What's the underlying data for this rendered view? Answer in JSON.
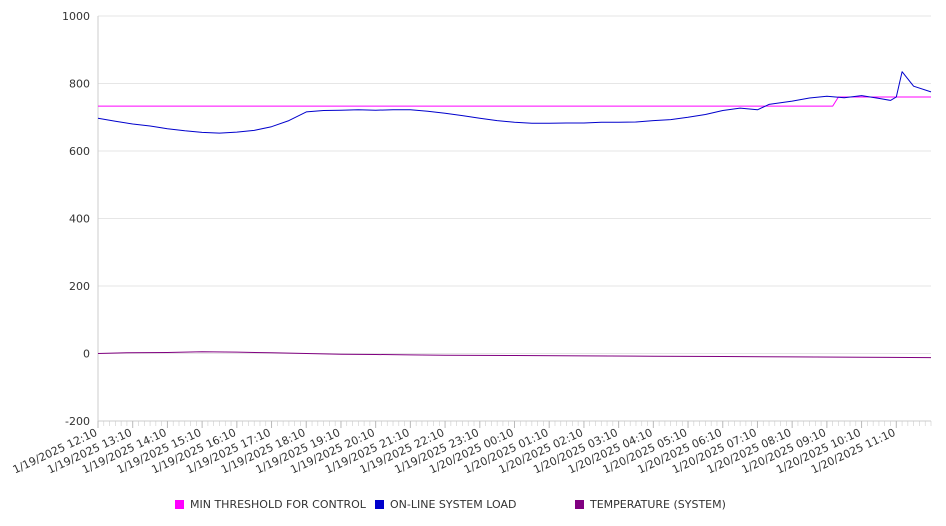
{
  "chart_data": {
    "type": "line",
    "ylim": [
      -200,
      1000
    ],
    "yticks": [
      -200,
      0,
      200,
      400,
      600,
      800,
      1000
    ],
    "x_start": "1/19/2025 12:10",
    "x_end": "1/20/2025 12:10",
    "x_tick_labels": [
      "1/19/2025 12:10",
      "1/19/2025 13:10",
      "1/19/2025 14:10",
      "1/19/2025 15:10",
      "1/19/2025 16:10",
      "1/19/2025 17:10",
      "1/19/2025 18:10",
      "1/19/2025 19:10",
      "1/19/2025 20:10",
      "1/19/2025 21:10",
      "1/19/2025 22:10",
      "1/19/2025 23:10",
      "1/20/2025 00:10",
      "1/20/2025 01:10",
      "1/20/2025 02:10",
      "1/20/2025 03:10",
      "1/20/2025 04:10",
      "1/20/2025 05:10",
      "1/20/2025 06:10",
      "1/20/2025 07:10",
      "1/20/2025 08:10",
      "1/20/2025 09:10",
      "1/20/2025 10:10",
      "1/20/2025 11:10"
    ],
    "grid": true,
    "legend_position": "bottom",
    "series": [
      {
        "name": "MIN THRESHOLD FOR CONTROL",
        "color": "#ff00ff",
        "points": [
          [
            "1/19/2025 12:10",
            733
          ],
          [
            "1/20/2025 09:20",
            733
          ],
          [
            "1/20/2025 09:30",
            760
          ],
          [
            "1/20/2025 12:10",
            760
          ]
        ]
      },
      {
        "name": "ON-LINE SYSTEM LOAD",
        "color": "#0000cc",
        "points": [
          [
            "1/19/2025 12:10",
            697
          ],
          [
            "1/19/2025 12:40",
            688
          ],
          [
            "1/19/2025 13:10",
            680
          ],
          [
            "1/19/2025 13:40",
            674
          ],
          [
            "1/19/2025 14:10",
            666
          ],
          [
            "1/19/2025 14:40",
            660
          ],
          [
            "1/19/2025 15:10",
            655
          ],
          [
            "1/19/2025 15:40",
            653
          ],
          [
            "1/19/2025 16:10",
            656
          ],
          [
            "1/19/2025 16:40",
            661
          ],
          [
            "1/19/2025 17:10",
            672
          ],
          [
            "1/19/2025 17:40",
            690
          ],
          [
            "1/19/2025 18:10",
            716
          ],
          [
            "1/19/2025 18:40",
            720
          ],
          [
            "1/19/2025 19:10",
            721
          ],
          [
            "1/19/2025 19:40",
            722
          ],
          [
            "1/19/2025 20:10",
            721
          ],
          [
            "1/19/2025 20:40",
            722
          ],
          [
            "1/19/2025 21:10",
            722
          ],
          [
            "1/19/2025 21:40",
            718
          ],
          [
            "1/19/2025 22:10",
            712
          ],
          [
            "1/19/2025 22:40",
            705
          ],
          [
            "1/19/2025 23:10",
            697
          ],
          [
            "1/19/2025 23:40",
            690
          ],
          [
            "1/20/2025 00:10",
            685
          ],
          [
            "1/20/2025 00:40",
            682
          ],
          [
            "1/20/2025 01:10",
            682
          ],
          [
            "1/20/2025 01:40",
            683
          ],
          [
            "1/20/2025 02:10",
            683
          ],
          [
            "1/20/2025 02:40",
            685
          ],
          [
            "1/20/2025 03:10",
            685
          ],
          [
            "1/20/2025 03:40",
            686
          ],
          [
            "1/20/2025 04:10",
            690
          ],
          [
            "1/20/2025 04:40",
            693
          ],
          [
            "1/20/2025 05:10",
            700
          ],
          [
            "1/20/2025 05:40",
            708
          ],
          [
            "1/20/2025 06:10",
            720
          ],
          [
            "1/20/2025 06:40",
            727
          ],
          [
            "1/20/2025 07:10",
            722
          ],
          [
            "1/20/2025 07:30",
            738
          ],
          [
            "1/20/2025 08:10",
            748
          ],
          [
            "1/20/2025 08:40",
            757
          ],
          [
            "1/20/2025 09:10",
            762
          ],
          [
            "1/20/2025 09:40",
            758
          ],
          [
            "1/20/2025 10:10",
            764
          ],
          [
            "1/20/2025 10:40",
            756
          ],
          [
            "1/20/2025 11:00",
            750
          ],
          [
            "1/20/2025 11:10",
            760
          ],
          [
            "1/20/2025 11:20",
            835
          ],
          [
            "1/20/2025 11:40",
            792
          ],
          [
            "1/20/2025 12:10",
            775
          ]
        ]
      },
      {
        "name": "TEMPERATURE (SYSTEM)",
        "color": "#800080",
        "points": [
          [
            "1/19/2025 12:10",
            0
          ],
          [
            "1/19/2025 13:00",
            2
          ],
          [
            "1/19/2025 14:10",
            3
          ],
          [
            "1/19/2025 15:10",
            5
          ],
          [
            "1/19/2025 16:10",
            4
          ],
          [
            "1/19/2025 17:10",
            2
          ],
          [
            "1/19/2025 18:10",
            0
          ],
          [
            "1/19/2025 19:10",
            -2
          ],
          [
            "1/19/2025 20:10",
            -3
          ],
          [
            "1/19/2025 21:10",
            -4
          ],
          [
            "1/19/2025 22:10",
            -5
          ],
          [
            "1/20/2025 00:10",
            -6
          ],
          [
            "1/20/2025 02:10",
            -7
          ],
          [
            "1/20/2025 04:10",
            -8
          ],
          [
            "1/20/2025 06:10",
            -9
          ],
          [
            "1/20/2025 08:10",
            -10
          ],
          [
            "1/20/2025 10:10",
            -11
          ],
          [
            "1/20/2025 12:10",
            -12
          ]
        ]
      }
    ]
  }
}
